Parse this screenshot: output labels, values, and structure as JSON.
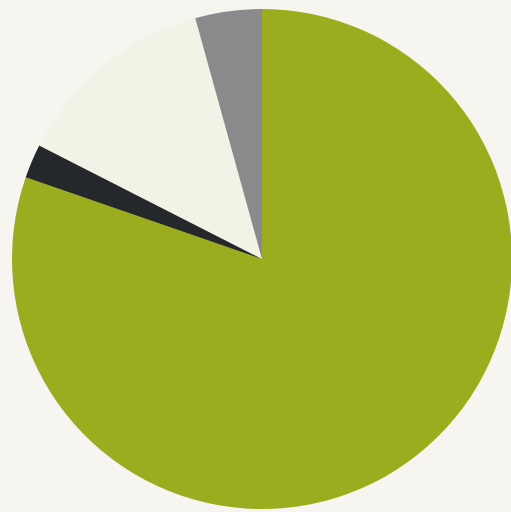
{
  "chart_data": {
    "type": "pie",
    "start_angle_deg": 0,
    "direction": "clockwise",
    "values": [
      80.3,
      2.2,
      13.2,
      4.3
    ],
    "colors": [
      "#9cac1f",
      "#25282a",
      "#f2f2e6",
      "#8a8a8c"
    ]
  }
}
